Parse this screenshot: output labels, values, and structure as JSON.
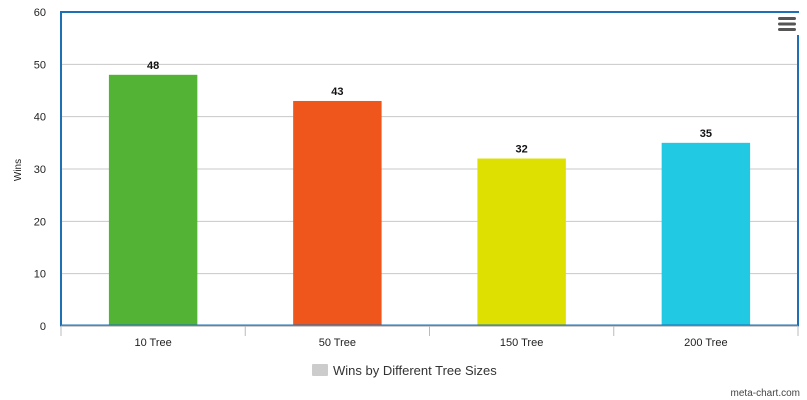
{
  "chart_data": {
    "type": "bar",
    "categories": [
      "10 Tree",
      "50 Tree",
      "150 Tree",
      "200 Tree"
    ],
    "series": [
      {
        "name": "Wins by Different Tree Sizes",
        "values": [
          48,
          43,
          32,
          35
        ],
        "colors": [
          "#53b335",
          "#ee561b",
          "#dde000",
          "#22c9e3"
        ]
      }
    ],
    "ylabel": "Wins",
    "xlabel": "",
    "ylim": [
      0,
      60
    ],
    "yticks": [
      0,
      10,
      20,
      30,
      40,
      50,
      60
    ],
    "grid": true,
    "legend_position": "bottom-center",
    "legend_swatch_color": "#cccccc",
    "plot_border_color": "#1f6fb5",
    "gridline_color": "#c8c8c8"
  },
  "credit": "meta-chart.com",
  "menu_icon": "hamburger-menu-icon"
}
